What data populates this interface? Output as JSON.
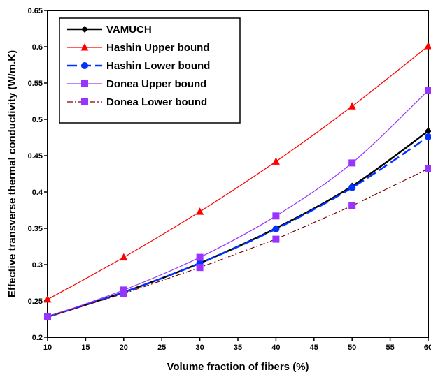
{
  "chart_data": {
    "type": "line",
    "title": "",
    "xlabel": "Volume fraction of fibers (%)",
    "ylabel": "Effective transverse thermal conductivity (W/m.K)",
    "xlim": [
      10,
      60
    ],
    "ylim": [
      0.2,
      0.65
    ],
    "x_ticks": [
      "10",
      "15",
      "20",
      "25",
      "30",
      "35",
      "40",
      "45",
      "50",
      "55",
      "60"
    ],
    "y_ticks": [
      "0.2",
      "0.25",
      "0.3",
      "0.35",
      "0.4",
      "0.45",
      "0.5",
      "0.55",
      "0.6",
      "0.65"
    ],
    "grid": false,
    "legend_position": "top-left",
    "x": [
      10,
      20,
      30,
      40,
      50,
      60
    ],
    "series": [
      {
        "name": "VAMUCH",
        "values": [
          0.228,
          0.262,
          0.302,
          0.35,
          0.408,
          0.484
        ],
        "color": "#000000",
        "marker": "diamond",
        "dash": "solid",
        "width": 2.5,
        "smooth": true
      },
      {
        "name": "Hashin Upper bound",
        "values": [
          0.252,
          0.31,
          0.373,
          0.442,
          0.518,
          0.601
        ],
        "color": "#ff0000",
        "marker": "triangle",
        "dash": "solid",
        "width": 1.2,
        "smooth": true
      },
      {
        "name": "Hashin Lower bound",
        "values": [
          0.228,
          0.262,
          0.302,
          0.349,
          0.406,
          0.476
        ],
        "color": "#0033ff",
        "marker": "circle",
        "dash": "long-dash",
        "width": 2.5,
        "smooth": true
      },
      {
        "name": "Donea Upper bound",
        "values": [
          0.228,
          0.265,
          0.31,
          0.367,
          0.44,
          0.54
        ],
        "color": "#9933ff",
        "marker": "square",
        "dash": "solid",
        "width": 1.2,
        "smooth": true
      },
      {
        "name": "Donea Lower bound",
        "values": [
          0.228,
          0.26,
          0.296,
          0.335,
          0.381,
          0.432
        ],
        "color": "#800000",
        "marker": "square",
        "marker_color": "#9933ff",
        "dash": "dash-dot",
        "width": 1.2,
        "smooth": false
      }
    ]
  }
}
